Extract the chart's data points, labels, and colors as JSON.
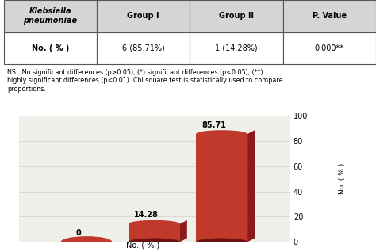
{
  "categories": [
    "P.\nValue",
    "Group II",
    "Group I"
  ],
  "values": [
    0,
    14.28,
    85.71
  ],
  "labels": [
    "0",
    "14.28",
    "85.71"
  ],
  "bar_color_face": "#c0392b",
  "bar_color_dark": "#8b1a1a",
  "bar_color_shadow": "#6b1010",
  "xlabel": "No. ( % )",
  "ylabel": "No. ( % )",
  "ylim": [
    0,
    100
  ],
  "yticks": [
    0,
    20,
    40,
    60,
    80,
    100
  ],
  "background_color": "#f0f0eb",
  "grid_color": "#d0d0d0",
  "table_col_headers": [
    "Klebsiella\npneumoniae",
    "Group I",
    "Group II",
    "P. Value"
  ],
  "table_row_label": "No. ( % )",
  "table_row_values": [
    "6 (85.71%)",
    "1 (14.28%)",
    "0.000**"
  ],
  "note_line1": "NS:  No significant differences (",
  "note_line2": "p",
  "note_text": "NS:  No significant differences (p>0.05), (*) significant differences (p<0.05), (**)\nhighly significant differences (p<0.01). Chi square test is statistically used to compare\nproportions."
}
